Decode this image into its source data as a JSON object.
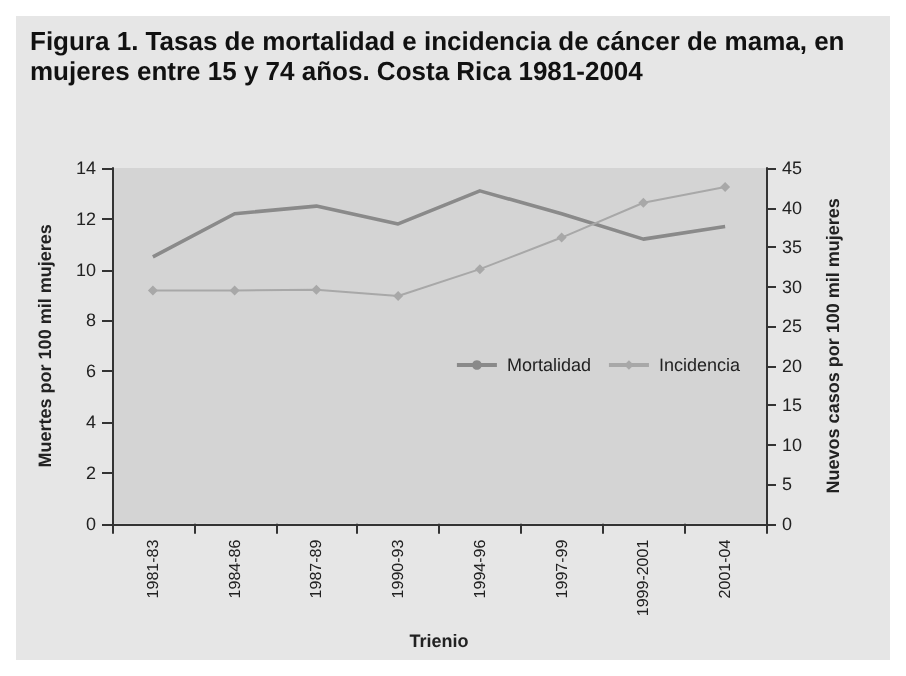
{
  "chart_data": {
    "type": "line",
    "title": "Figura 1. Tasas de mortalidad e incidencia de cáncer de mama, en mujeres entre 15 y 74 años. Costa Rica 1981-2004",
    "xlabel": "Trienio",
    "ylabel": "Muertes por 100 mil mujeres",
    "y2label": "Nuevos casos por 100 mil mujeres",
    "categories": [
      "1981-83",
      "1984-86",
      "1987-89",
      "1990-93",
      "1994-96",
      "1997-99",
      "1999-2001",
      "2001-04"
    ],
    "series": [
      {
        "name": "Mortalidad",
        "color": "#8a8a8a",
        "marker": "none",
        "values": [
          10.5,
          12.2,
          12.5,
          11.8,
          13.1,
          12.2,
          11.2,
          11.7
        ]
      },
      {
        "name": "Incidencia",
        "color": "#a8a8a8",
        "marker": "diamond",
        "axis": "y2",
        "values": [
          29.5,
          29.5,
          29.6,
          28.8,
          32.2,
          36.2,
          40.6,
          42.6
        ]
      }
    ],
    "ylim": [
      0,
      14
    ],
    "yticks": [
      0,
      2,
      4,
      6,
      8,
      10,
      12,
      14
    ],
    "y2lim": [
      0,
      45
    ],
    "y2ticks": [
      0,
      5,
      10,
      15,
      20,
      25,
      30,
      35,
      40,
      45
    ],
    "grid": false,
    "legend": "right"
  }
}
